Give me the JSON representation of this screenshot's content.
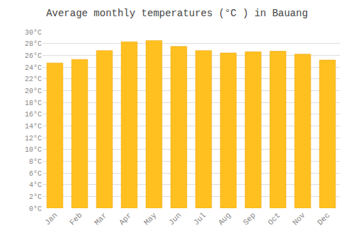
{
  "chart_data": {
    "type": "bar",
    "title": "Average monthly temperatures (°C ) in Bauang",
    "categories": [
      "Jan",
      "Feb",
      "Mar",
      "Apr",
      "May",
      "Jun",
      "Jul",
      "Aug",
      "Sep",
      "Oct",
      "Nov",
      "Dec"
    ],
    "values": [
      24.7,
      25.3,
      26.8,
      28.3,
      28.5,
      27.5,
      26.8,
      26.4,
      26.6,
      26.7,
      26.2,
      25.2
    ],
    "color": "#FFC020",
    "ylim": [
      0,
      30
    ],
    "yticks": [
      {
        "value": 0,
        "label": "0°C"
      },
      {
        "value": 2,
        "label": "2°C"
      },
      {
        "value": 4,
        "label": "4°C"
      },
      {
        "value": 6,
        "label": "6°C"
      },
      {
        "value": 8,
        "label": "8°C"
      },
      {
        "value": 10,
        "label": "10°C"
      },
      {
        "value": 12,
        "label": "12°C"
      },
      {
        "value": 14,
        "label": "14°C"
      },
      {
        "value": 16,
        "label": "16°C"
      },
      {
        "value": 18,
        "label": "18°C"
      },
      {
        "value": 20,
        "label": "20°C"
      },
      {
        "value": 22,
        "label": "22°C"
      },
      {
        "value": 24,
        "label": "24°C"
      },
      {
        "value": 26,
        "label": "26°C"
      },
      {
        "value": 28,
        "label": "28°C"
      },
      {
        "value": 30,
        "label": "30°C"
      }
    ],
    "grid": true
  }
}
